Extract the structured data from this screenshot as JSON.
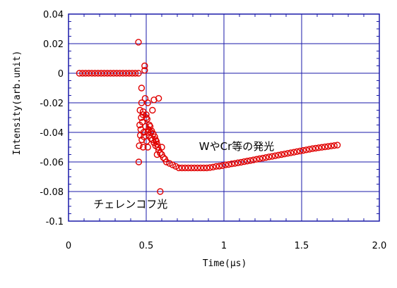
{
  "chart_data": {
    "type": "scatter",
    "xlabel": "Time(μs)",
    "ylabel": "Intensity(arb.unit)",
    "xlim": [
      0,
      2.0
    ],
    "ylim": [
      -0.1,
      0.04
    ],
    "x_ticks": [
      "0",
      "0.5",
      "1",
      "1.5",
      "2.0"
    ],
    "y_ticks": [
      "0.04",
      "0.02",
      "0",
      "-0.02",
      "-0.04",
      "-0.06",
      "-0.08",
      "-0.1"
    ],
    "grid": true,
    "marker": "open-circle",
    "colors": {
      "marker": "#e00000",
      "grid": "#1a1aa8",
      "frame": "#1a1aa8"
    },
    "annotations": [
      {
        "text": "WやCr等の発光",
        "x": 0.84,
        "y": -0.052
      },
      {
        "text": "チェレンコフ光",
        "x": 0.16,
        "y": -0.091
      }
    ],
    "series": [
      {
        "x": [
          0.07,
          0.09,
          0.11,
          0.13,
          0.15,
          0.17,
          0.19,
          0.21,
          0.23,
          0.25,
          0.27,
          0.29,
          0.31,
          0.33,
          0.35,
          0.37,
          0.39,
          0.41,
          0.43,
          0.45,
          0.45,
          0.452,
          0.455,
          0.458,
          0.46,
          0.462,
          0.465,
          0.468,
          0.47,
          0.472,
          0.475,
          0.478,
          0.48,
          0.483,
          0.486,
          0.49,
          0.493,
          0.496,
          0.5,
          0.503,
          0.506,
          0.51,
          0.515,
          0.52,
          0.525,
          0.53,
          0.535,
          0.54,
          0.545,
          0.55,
          0.555,
          0.56,
          0.565,
          0.57,
          0.575,
          0.58,
          0.59,
          0.6,
          0.61,
          0.62,
          0.49,
          0.5,
          0.51,
          0.52,
          0.53,
          0.54,
          0.55,
          0.56,
          0.57,
          0.58,
          0.47,
          0.48,
          0.59,
          0.6,
          0.51,
          0.63,
          0.65,
          0.67,
          0.69,
          0.71,
          0.73,
          0.75,
          0.77,
          0.79,
          0.81,
          0.83,
          0.85,
          0.87,
          0.89,
          0.91,
          0.93,
          0.95,
          0.97,
          0.99,
          1.01,
          1.03,
          1.05,
          1.07,
          1.09,
          1.11,
          1.13,
          1.15,
          1.17,
          1.19,
          1.21,
          1.23,
          1.25,
          1.27,
          1.29,
          1.31,
          1.33,
          1.35,
          1.37,
          1.39,
          1.41,
          1.43,
          1.45,
          1.47,
          1.49,
          1.51,
          1.53,
          1.55,
          1.57,
          1.59,
          1.61,
          1.63,
          1.65,
          1.67,
          1.69,
          1.71,
          1.73
        ],
        "y": [
          0,
          0,
          0,
          0,
          0,
          0,
          0,
          0,
          0,
          0,
          0,
          0,
          0,
          0,
          0,
          0,
          0,
          0,
          0,
          0,
          0.021,
          -0.06,
          -0.049,
          -0.035,
          -0.025,
          -0.042,
          -0.038,
          -0.03,
          -0.02,
          -0.045,
          -0.033,
          -0.028,
          -0.026,
          -0.04,
          -0.043,
          0.005,
          -0.017,
          -0.036,
          -0.028,
          -0.046,
          -0.031,
          -0.05,
          -0.038,
          -0.042,
          -0.036,
          -0.044,
          -0.039,
          -0.045,
          -0.041,
          -0.047,
          -0.043,
          -0.049,
          -0.046,
          -0.048,
          -0.05,
          -0.052,
          -0.054,
          -0.055,
          -0.057,
          -0.058,
          0.002,
          -0.03,
          -0.02,
          -0.035,
          -0.04,
          -0.025,
          -0.018,
          -0.045,
          -0.055,
          -0.017,
          -0.01,
          -0.05,
          -0.08,
          -0.05,
          -0.04,
          -0.06,
          -0.061,
          -0.062,
          -0.063,
          -0.064,
          -0.064,
          -0.064,
          -0.064,
          -0.064,
          -0.064,
          -0.064,
          -0.064,
          -0.064,
          -0.064,
          -0.0638,
          -0.0635,
          -0.063,
          -0.0628,
          -0.0625,
          -0.062,
          -0.0617,
          -0.0613,
          -0.061,
          -0.0606,
          -0.0602,
          -0.0598,
          -0.0594,
          -0.059,
          -0.0586,
          -0.0582,
          -0.0578,
          -0.0574,
          -0.057,
          -0.0566,
          -0.0562,
          -0.0558,
          -0.0554,
          -0.055,
          -0.0546,
          -0.0542,
          -0.0538,
          -0.0534,
          -0.053,
          -0.0526,
          -0.0522,
          -0.0518,
          -0.0514,
          -0.051,
          -0.0507,
          -0.0504,
          -0.0501,
          -0.0498,
          -0.0495,
          -0.0492,
          -0.0489,
          -0.0486
        ]
      }
    ]
  }
}
